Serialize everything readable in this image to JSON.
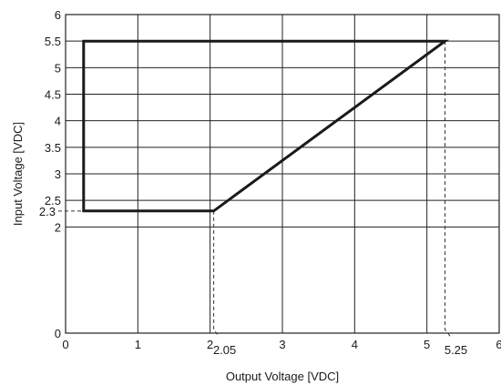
{
  "chart_data": {
    "type": "line",
    "title": "",
    "xlabel": "Output Voltage [VDC]",
    "ylabel": "Input Voltage [VDC]",
    "xlim": [
      0,
      6
    ],
    "ylim": [
      0,
      6
    ],
    "x_ticks": [
      {
        "value": 0,
        "label": "0"
      },
      {
        "value": 1,
        "label": "1"
      },
      {
        "value": 2,
        "label": "2"
      },
      {
        "value": 3,
        "label": "3"
      },
      {
        "value": 4,
        "label": "4"
      },
      {
        "value": 5,
        "label": "5"
      },
      {
        "value": 6,
        "label": "6"
      }
    ],
    "y_ticks": [
      {
        "value": 0,
        "label": "0"
      },
      {
        "value": 2,
        "label": "2"
      },
      {
        "value": 2.5,
        "label": "2.5"
      },
      {
        "value": 3,
        "label": "3"
      },
      {
        "value": 3.5,
        "label": "3.5"
      },
      {
        "value": 4,
        "label": "4"
      },
      {
        "value": 4.5,
        "label": "4.5"
      },
      {
        "value": 5,
        "label": "5"
      },
      {
        "value": 5.5,
        "label": "5.5"
      },
      {
        "value": 6,
        "label": "6"
      }
    ],
    "grid": true,
    "series": [
      {
        "x": [
          0.25,
          0.25,
          5.25,
          2.05,
          0.25
        ],
        "y": [
          2.3,
          5.5,
          5.5,
          2.3,
          2.3
        ]
      }
    ],
    "annotations": [
      {
        "axis": "y",
        "value": 2.3,
        "label": "2.3"
      },
      {
        "axis": "x",
        "value": 2.05,
        "label": "2.05"
      },
      {
        "axis": "x",
        "value": 5.25,
        "label": "5.25"
      }
    ]
  }
}
